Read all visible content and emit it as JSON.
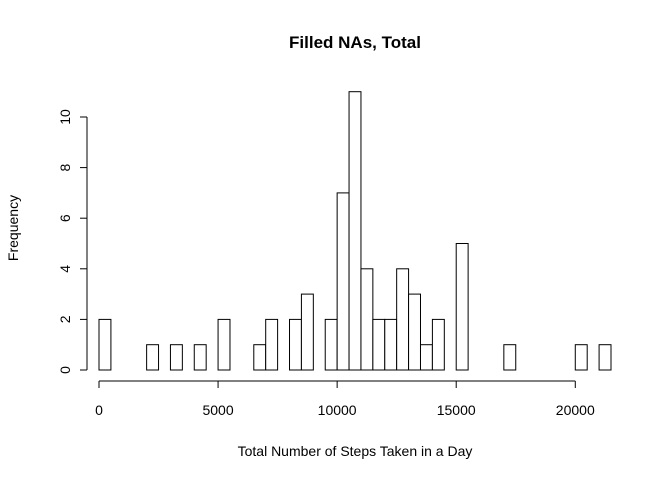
{
  "chart_data": {
    "type": "bar",
    "title": "Filled NAs, Total",
    "xlabel": "Total Number of Steps Taken in a Day",
    "ylabel": "Frequency",
    "bin_width": 500,
    "bins_start": [
      0,
      500,
      1000,
      1500,
      2000,
      2500,
      3000,
      3500,
      4000,
      4500,
      5000,
      5500,
      6000,
      6500,
      7000,
      7500,
      8000,
      8500,
      9000,
      9500,
      10000,
      10500,
      11000,
      11500,
      12000,
      12500,
      13000,
      13500,
      14000,
      14500,
      15000,
      15500,
      16000,
      16500,
      17000,
      17500,
      18000,
      18500,
      19000,
      19500,
      20000,
      20500,
      21000
    ],
    "values": [
      2,
      0,
      0,
      0,
      1,
      0,
      1,
      0,
      1,
      0,
      2,
      0,
      0,
      1,
      2,
      0,
      2,
      3,
      0,
      2,
      7,
      11,
      4,
      2,
      2,
      4,
      3,
      1,
      2,
      0,
      5,
      0,
      0,
      0,
      1,
      0,
      0,
      0,
      0,
      0,
      1,
      0,
      1
    ],
    "xlim": [
      0,
      21500
    ],
    "ylim": [
      0,
      11
    ],
    "x_ticks": [
      0,
      5000,
      10000,
      15000,
      20000
    ],
    "y_ticks": [
      0,
      2,
      4,
      6,
      8,
      10
    ],
    "bar_fill": "#ffffff",
    "bar_stroke": "#000000",
    "grid": false
  }
}
